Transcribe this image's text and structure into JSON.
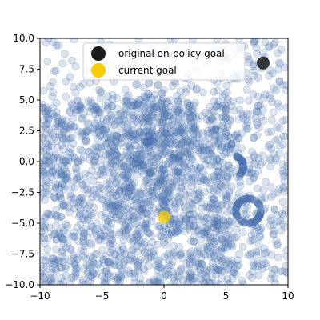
{
  "chart_data": {
    "type": "scatter",
    "title": "",
    "xlabel": "",
    "ylabel": "",
    "xlim": [
      -10,
      10
    ],
    "ylim": [
      -10,
      10
    ],
    "x_ticks": [
      -10,
      -5,
      0,
      5,
      10
    ],
    "y_ticks": [
      -10.0,
      -7.5,
      -5.0,
      -2.5,
      0.0,
      2.5,
      5.0,
      7.5,
      10.0
    ],
    "x_tick_labels": [
      "−10",
      "−5",
      "0",
      "5",
      "10"
    ],
    "y_tick_labels": [
      "−10.0",
      "−7.5",
      "−5.0",
      "−2.5",
      "0.0",
      "2.5",
      "5.0",
      "7.5",
      "10.0"
    ],
    "grid": false,
    "legend_position": "top-center",
    "series": [
      {
        "name": "",
        "color": "#4c72b0",
        "alpha": 0.2,
        "description_points": "dense cloud of explored states"
      },
      {
        "name": "original on-policy goal",
        "color": "#1a1a1a",
        "points": [
          [
            8.0,
            8.0
          ]
        ]
      },
      {
        "name": "current goal",
        "color": "#f5cd00",
        "points": [
          [
            0.0,
            -4.5
          ]
        ]
      }
    ],
    "legend": [
      {
        "label": "original on-policy goal",
        "color": "#1a1a1a"
      },
      {
        "label": "current goal",
        "color": "#f5cd00"
      }
    ]
  }
}
